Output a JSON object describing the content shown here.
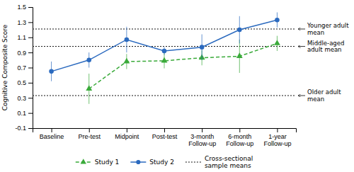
{
  "chart_data": {
    "type": "line",
    "categories": [
      "Baseline",
      "Pre-test",
      "Midpoint",
      "Post-test",
      "3-month\nFollow-up",
      "6-month\nFollow-up",
      "1-year\nFollow-up"
    ],
    "series": [
      {
        "name": "Study 1",
        "color": "#3aaa3a",
        "marker": "triangle",
        "line_style": "dashed",
        "values": [
          null,
          0.42,
          0.78,
          0.79,
          0.83,
          0.85,
          1.02
        ],
        "errors": [
          null,
          0.2,
          0.1,
          0.1,
          0.1,
          0.22,
          0.1
        ]
      },
      {
        "name": "Study 2",
        "color": "#2b6abf",
        "marker": "circle",
        "line_style": "solid",
        "values": [
          0.65,
          0.8,
          1.07,
          0.92,
          0.97,
          1.2,
          1.33
        ],
        "errors": [
          0.13,
          0.1,
          0.17,
          0.05,
          0.17,
          0.18,
          0.1
        ]
      }
    ],
    "reference_lines": {
      "name": "Cross-sectional\nsample means",
      "color": "#111111",
      "line_style": "dotted",
      "values": [
        1.21,
        0.98,
        0.33
      ],
      "labels": [
        "Younger adult\nmean",
        "Middle-aged\nadult mean",
        "Older adult\nmean"
      ]
    },
    "ylabel": "Cognitive Composite Score",
    "ylim": [
      -0.1,
      1.5
    ],
    "yticks": [
      -0.1,
      0.1,
      0.3,
      0.5,
      0.7,
      0.9,
      1.1,
      1.3,
      1.5
    ],
    "grid": false,
    "legend": "bottom"
  }
}
